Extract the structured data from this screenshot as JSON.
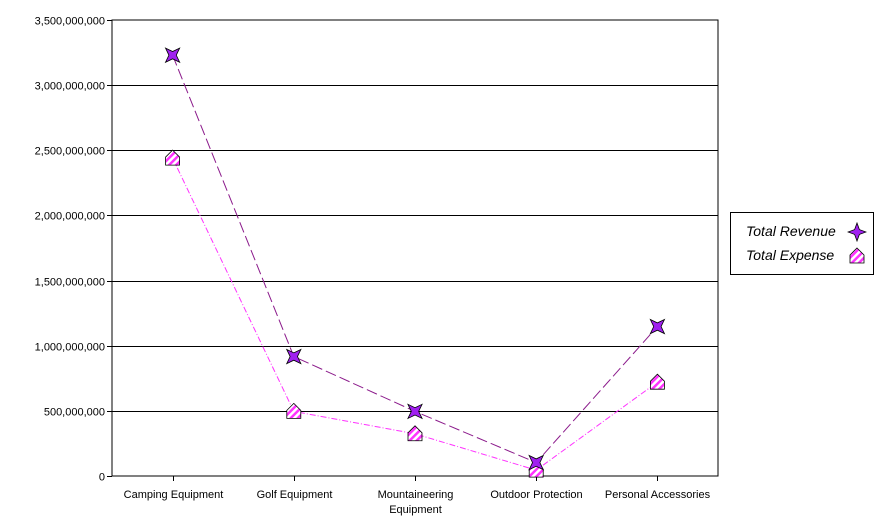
{
  "chart_data": {
    "type": "line",
    "categories": [
      "Camping Equipment",
      "Golf Equipment",
      "Mountaineering Equipment",
      "Outdoor Protection",
      "Personal Accessories"
    ],
    "category_lines": [
      [
        "Camping Equipment"
      ],
      [
        "Golf Equipment"
      ],
      [
        "Mountaineering",
        "Equipment"
      ],
      [
        "Outdoor Protection"
      ],
      [
        "Personal Accessories"
      ]
    ],
    "series": [
      {
        "name": "Total Revenue",
        "values": [
          3230000000,
          917000000,
          496000000,
          103000000,
          1147000000
        ],
        "color": "#8b1a8b",
        "marker_fill": "#a020f0",
        "marker": "star4",
        "dash": "11,4"
      },
      {
        "name": "Total Expense",
        "values": [
          2440000000,
          496000000,
          324000000,
          45000000,
          720000000
        ],
        "color": "#ff33ff",
        "marker_fill": "#ff33ff",
        "marker": "house-hatched",
        "dash": "6,2,1,2"
      }
    ],
    "ylim": [
      0,
      3500000000
    ],
    "yticks": [
      0,
      500000000,
      1000000000,
      1500000000,
      2000000000,
      2500000000,
      3000000000,
      3500000000
    ],
    "ytick_labels": [
      "0",
      "500,000,000",
      "1,000,000,000",
      "1,500,000,000",
      "2,000,000,000",
      "2,500,000,000",
      "3,000,000,000",
      "3,500,000,000"
    ],
    "grid": true,
    "legend_position": "right"
  }
}
